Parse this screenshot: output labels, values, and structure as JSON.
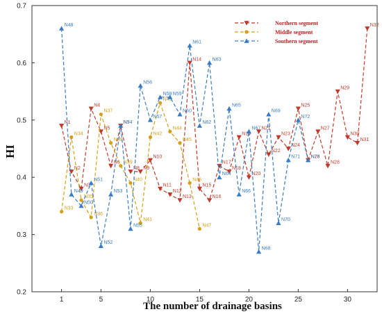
{
  "chart_data": {
    "type": "line",
    "title": "",
    "xlabel": "The number of drainage basins",
    "ylabel": "HI",
    "xlim": [
      -2,
      33
    ],
    "ylim": [
      0.2,
      0.7
    ],
    "xticks": [
      1,
      5,
      10,
      15,
      20,
      25,
      30
    ],
    "yticks": [
      0.2,
      0.3,
      0.4,
      0.5,
      0.6,
      0.7
    ],
    "grid": false,
    "legend_position": "top-right",
    "series": [
      {
        "name": "Northern segment",
        "color": "#c0392b",
        "marker": "triangle-down",
        "x": [
          1,
          2,
          3,
          4,
          5,
          6,
          7,
          8,
          9,
          10,
          11,
          12,
          13,
          14,
          15,
          16,
          17,
          18,
          19,
          20,
          21,
          22,
          23,
          24,
          25,
          26,
          27,
          28,
          29,
          30,
          31,
          32
        ],
        "y": [
          0.49,
          0.41,
          0.38,
          0.52,
          0.48,
          0.42,
          0.49,
          0.41,
          0.41,
          0.43,
          0.38,
          0.37,
          0.36,
          0.6,
          0.38,
          0.36,
          0.42,
          0.41,
          0.47,
          0.4,
          0.48,
          0.44,
          0.47,
          0.45,
          0.52,
          0.43,
          0.48,
          0.42,
          0.55,
          0.47,
          0.46,
          0.66
        ],
        "labels": [
          "N1",
          "N2",
          "N3",
          "N4",
          "N5",
          "N6",
          "N7",
          "N8",
          "N9",
          "N10",
          "N11",
          "N12",
          "N13",
          "N14",
          "N15",
          "N16",
          "N17",
          "N18",
          "N19",
          "N20",
          "N21",
          "N22",
          "N23",
          "N24",
          "N25",
          "N26",
          "N27",
          "N28",
          "N29",
          "N30",
          "N31",
          "N32"
        ]
      },
      {
        "name": "Middle segment",
        "color": "#d4a017",
        "marker": "circle",
        "x": [
          1,
          2,
          3,
          4,
          5,
          6,
          7,
          8,
          9,
          10,
          11,
          12,
          13,
          14,
          15
        ],
        "y": [
          0.34,
          0.47,
          0.36,
          0.33,
          0.51,
          0.46,
          0.42,
          0.39,
          0.32,
          0.47,
          0.53,
          0.48,
          0.46,
          0.39,
          0.31
        ],
        "labels": [
          "N33",
          "N34",
          "N35",
          "N36",
          "N37",
          "N38",
          "N39",
          "N40",
          "N41",
          "N42",
          "N43",
          "N44",
          "N45",
          "N46",
          "N47"
        ]
      },
      {
        "name": "Southern segment",
        "color": "#3a7cc4",
        "marker": "triangle-up",
        "x": [
          1,
          2,
          3,
          4,
          5,
          6,
          7,
          8,
          9,
          10,
          11,
          12,
          13,
          14,
          15,
          16,
          17,
          18,
          19,
          20,
          21,
          22,
          23,
          24,
          25,
          26
        ],
        "y": [
          0.66,
          0.37,
          0.35,
          0.39,
          0.28,
          0.37,
          0.49,
          0.31,
          0.56,
          0.5,
          0.54,
          0.54,
          0.51,
          0.63,
          0.49,
          0.6,
          0.4,
          0.52,
          0.37,
          0.48,
          0.27,
          0.51,
          0.32,
          0.43,
          0.5,
          0.43
        ],
        "labels": [
          "N48",
          "N49",
          "N50",
          "N51",
          "N52",
          "N53",
          "N54",
          "N55",
          "N56",
          "N57",
          "N58",
          "N59",
          "N60",
          "N61",
          "N62",
          "N63",
          "N64",
          "N65",
          "N66",
          "N67",
          "N68",
          "N69",
          "N70",
          "N71",
          "N72",
          "N73"
        ]
      }
    ]
  }
}
